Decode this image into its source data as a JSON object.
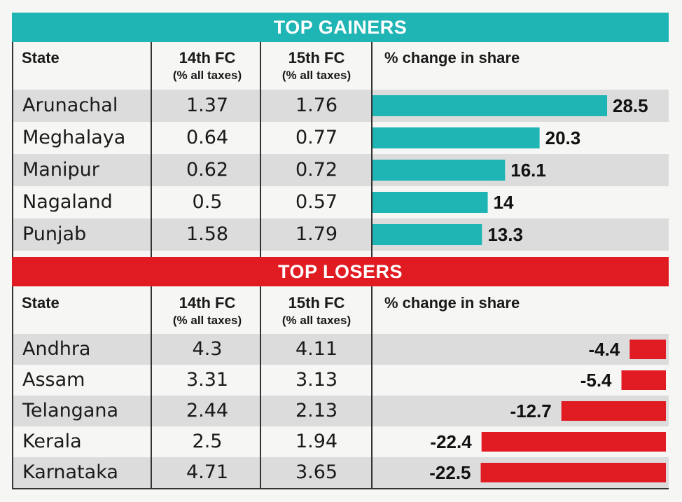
{
  "chart_data": [
    {
      "type": "bar",
      "title": "TOP GAINERS",
      "columns": [
        "State",
        "14th FC",
        "(% all taxes)",
        "15th FC",
        "(% all taxes)",
        "% change in share"
      ],
      "rows": [
        {
          "state": "Arunachal",
          "fc14": "1.37",
          "fc15": "1.76",
          "change": 28.5,
          "change_label": "28.5"
        },
        {
          "state": "Meghalaya",
          "fc14": "0.64",
          "fc15": "0.77",
          "change": 20.3,
          "change_label": "20.3"
        },
        {
          "state": "Manipur",
          "fc14": "0.62",
          "fc15": "0.72",
          "change": 16.1,
          "change_label": "16.1"
        },
        {
          "state": "Nagaland",
          "fc14": "0.5",
          "fc15": "0.57",
          "change": 14,
          "change_label": "14"
        },
        {
          "state": "Punjab",
          "fc14": "1.58",
          "fc15": "1.79",
          "change": 13.3,
          "change_label": "13.3"
        }
      ],
      "bar_color": "#1fb5b5"
    },
    {
      "type": "bar",
      "title": "TOP LOSERS",
      "columns": [
        "State",
        "14th FC",
        "(% all taxes)",
        "15th FC",
        "(% all taxes)",
        "% change in share"
      ],
      "rows": [
        {
          "state": "Andhra",
          "fc14": "4.3",
          "fc15": "4.11",
          "change": -4.4,
          "change_label": "-4.4"
        },
        {
          "state": "Assam",
          "fc14": "3.31",
          "fc15": "3.13",
          "change": -5.4,
          "change_label": "-5.4"
        },
        {
          "state": "Telangana",
          "fc14": "2.44",
          "fc15": "2.13",
          "change": -12.7,
          "change_label": "-12.7"
        },
        {
          "state": "Kerala",
          "fc14": "2.5",
          "fc15": "1.94",
          "change": -22.4,
          "change_label": "-22.4"
        },
        {
          "state": "Karnataka",
          "fc14": "4.71",
          "fc15": "3.65",
          "change": -22.5,
          "change_label": "-22.5"
        }
      ],
      "bar_color": "#e11b22"
    }
  ]
}
